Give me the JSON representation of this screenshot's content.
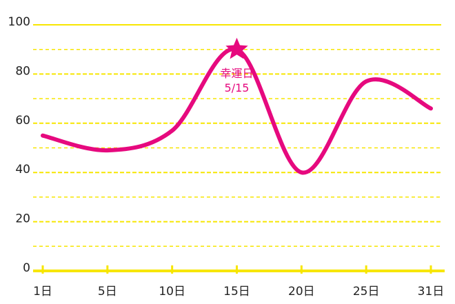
{
  "chart_data": {
    "type": "line",
    "categories": [
      "1日",
      "5日",
      "10日",
      "15日",
      "20日",
      "25日",
      "31日"
    ],
    "series": [
      {
        "color": "#e6097e",
        "values": [
          55,
          49,
          57,
          90,
          40,
          77,
          66
        ]
      }
    ],
    "ylim": [
      0,
      100
    ],
    "yticks": [
      0,
      20,
      40,
      60,
      80,
      100
    ],
    "minor_yticks": [
      10,
      30,
      50,
      70,
      90
    ],
    "grid": true,
    "grid_color": "#f7e600",
    "annotation": {
      "category": "15日",
      "lines": [
        "幸運日",
        "5/15"
      ]
    }
  }
}
